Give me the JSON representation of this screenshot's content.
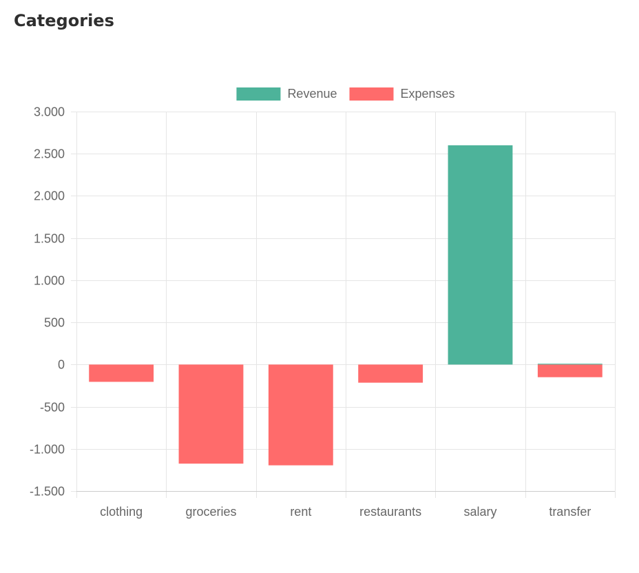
{
  "page": {
    "title": "Categories"
  },
  "chart_data": {
    "type": "bar",
    "categories": [
      "clothing",
      "groceries",
      "rent",
      "restaurants",
      "salary",
      "transfer"
    ],
    "series": [
      {
        "name": "Revenue",
        "color": "#4db39a",
        "values": [
          0,
          0,
          0,
          0,
          2600,
          10
        ]
      },
      {
        "name": "Expenses",
        "color": "#ff6b6b",
        "values": [
          -205,
          -1175,
          -1195,
          -215,
          0,
          -150
        ]
      }
    ],
    "stacked": true,
    "ylim": [
      -1500,
      3000
    ],
    "yticks": [
      3000,
      2500,
      2000,
      1500,
      1000,
      500,
      0,
      -500,
      -1000,
      -1500
    ],
    "ytick_labels": [
      "3.000",
      "2.500",
      "2.000",
      "1.500",
      "1.000",
      "500",
      "0",
      "-500",
      "-1.000",
      "-1.500"
    ],
    "legend_position": "top",
    "grid": true,
    "colors": {
      "grid": "#e5e5e5",
      "tick_text": "#666666"
    }
  }
}
